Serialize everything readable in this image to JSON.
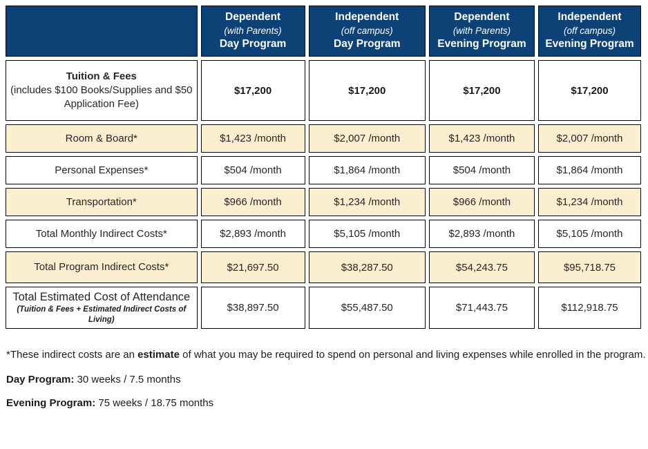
{
  "table": {
    "columns": [
      {
        "line1": "Dependent",
        "line2": "(with Parents)",
        "line3": "Day Program"
      },
      {
        "line1": "Independent",
        "line2": "(off campus)",
        "line3": "Day Program"
      },
      {
        "line1": "Dependent",
        "line2": "(with Parents)",
        "line3": "Evening Program"
      },
      {
        "line1": "Independent",
        "line2": "(off campus)",
        "line3": "Evening Program"
      }
    ],
    "rows": [
      {
        "label": "Tuition & Fees",
        "sublabel": "(includes $100 Books/Supplies and $50 Application Fee)",
        "values": [
          "$17,200",
          "$17,200",
          "$17,200",
          "$17,200"
        ]
      },
      {
        "label": "Room & Board*",
        "values": [
          "$1,423 /month",
          "$2,007 /month",
          "$1,423 /month",
          "$2,007 /month"
        ]
      },
      {
        "label": "Personal Expenses*",
        "values": [
          "$504 /month",
          "$1,864 /month",
          "$504 /month",
          "$1,864 /month"
        ]
      },
      {
        "label": "Transportation*",
        "values": [
          "$966 /month",
          "$1,234 /month",
          "$966 /month",
          "$1,234 /month"
        ]
      },
      {
        "label": "Total Monthly Indirect Costs*",
        "values": [
          "$2,893 /month",
          "$5,105 /month",
          "$2,893 /month",
          "$5,105 /month"
        ]
      },
      {
        "label": "Total Program Indirect Costs*",
        "values": [
          "$21,697.50",
          "$38,287.50",
          "$54,243.75",
          "$95,718.75"
        ]
      },
      {
        "label": "Total Estimated Cost of Attendance",
        "sublabel": "(Tuition & Fees + Estimated Indirect Costs of Living)",
        "values": [
          "$38,897.50",
          "$55,487.50",
          "$71,443.75",
          "$112,918.75"
        ]
      }
    ]
  },
  "notes": {
    "asterisk_prefix": "*These indirect costs are an ",
    "asterisk_bold": "estimate",
    "asterisk_suffix": " of what you may be required to spend on personal and living expenses while enrolled in the program.",
    "day_label": "Day Program:",
    "day_text": " 30 weeks / 7.5 months",
    "evening_label": "Evening Program:",
    "evening_text": " 75 weeks / 18.75 months"
  },
  "colors": {
    "header_bg": "#0d4277",
    "row_shade": "#fcefd0",
    "border": "#000000"
  }
}
